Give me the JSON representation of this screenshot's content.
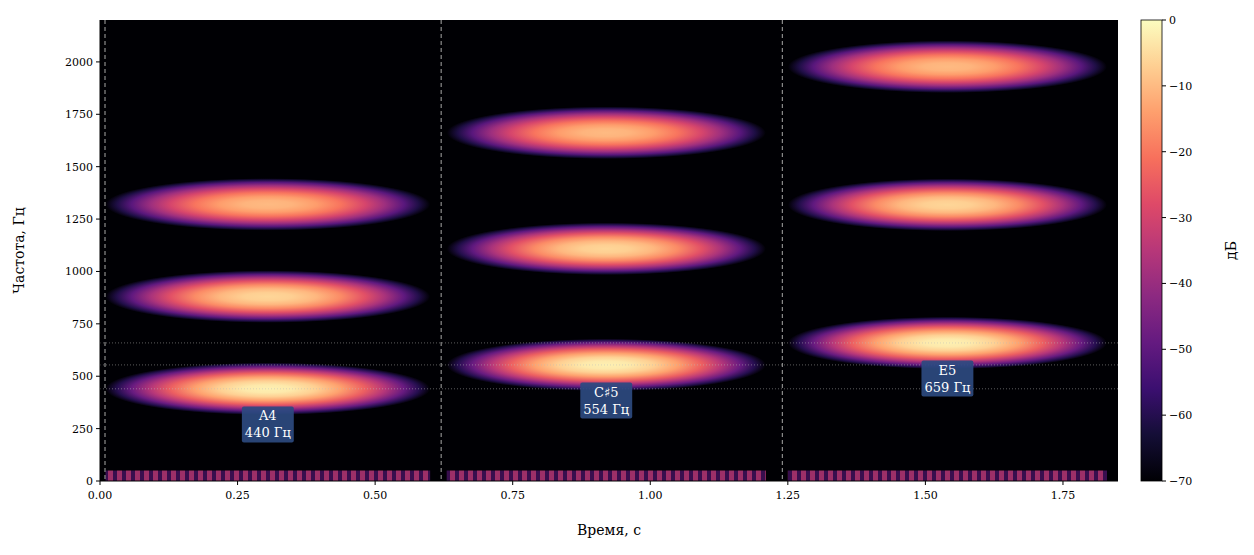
{
  "chart_data": {
    "type": "spectrogram",
    "x_label": "Время, с",
    "y_label": "Частота, Гц",
    "xlim": [
      0,
      1.85
    ],
    "ylim": [
      0,
      2200
    ],
    "xticks": [
      {
        "value": 0,
        "label": "0.00"
      },
      0.25,
      {
        "value": 0.5,
        "label": "0.50"
      },
      0.75,
      {
        "value": 1,
        "label": "1.00"
      },
      1.25,
      {
        "value": 1.5,
        "label": "1.50"
      },
      1.75
    ],
    "yticks": [
      0,
      250,
      500,
      750,
      1000,
      1250,
      1500,
      1750,
      2000
    ],
    "colorbar": {
      "label": "дБ",
      "range": [
        -70,
        0
      ],
      "ticks": [
        0,
        {
          "value": -10,
          "label": "−10"
        },
        {
          "value": -20,
          "label": "−20"
        },
        {
          "value": -30,
          "label": "−30"
        },
        {
          "value": -40,
          "label": "−40"
        },
        {
          "value": -50,
          "label": "−50"
        },
        {
          "value": -60,
          "label": "−60"
        },
        {
          "value": -70,
          "label": "−70"
        }
      ]
    },
    "segment_boundaries": [
      0,
      0.62,
      1.24
    ],
    "noise": {
      "max_freq": 50
    },
    "notes": [
      {
        "label": "A4",
        "freq_label": "440 Гц",
        "frequency": 440,
        "start": 0.01,
        "end": 0.6,
        "noise_db": -35,
        "harmonics": [
          {
            "freq": 440,
            "peak_db": -2
          },
          {
            "freq": 880,
            "peak_db": -6
          },
          {
            "freq": 1320,
            "peak_db": -10
          }
        ]
      },
      {
        "label": "C♯5",
        "freq_label": "554 Гц",
        "frequency": 554,
        "start": 0.63,
        "end": 1.21,
        "noise_db": -35,
        "harmonics": [
          {
            "freq": 554,
            "peak_db": -2
          },
          {
            "freq": 1108,
            "peak_db": -6
          },
          {
            "freq": 1662,
            "peak_db": -10
          }
        ]
      },
      {
        "label": "E5",
        "freq_label": "659 Гц",
        "frequency": 659,
        "start": 1.25,
        "end": 1.83,
        "noise_db": -35,
        "harmonics": [
          {
            "freq": 659,
            "peak_db": -2
          },
          {
            "freq": 1318,
            "peak_db": -6
          },
          {
            "freq": 1977,
            "peak_db": -10
          }
        ]
      }
    ]
  }
}
